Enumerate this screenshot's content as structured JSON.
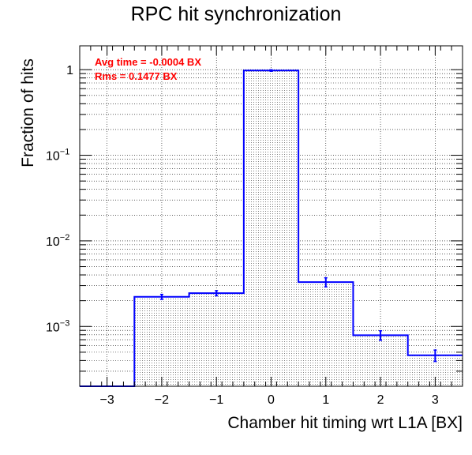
{
  "chart_data": {
    "type": "bar",
    "title": "RPC hit synchronization",
    "xlabel": "Chamber hit timing wrt L1A [BX]",
    "ylabel": "Fraction of hits",
    "log_y": true,
    "xlim": [
      -3.5,
      3.5
    ],
    "ylim": [
      0.0002,
      1.9
    ],
    "x_ticks": [
      -3,
      -2,
      -1,
      0,
      1,
      2,
      3
    ],
    "y_ticks": [
      {
        "value": 0.001,
        "base": "10",
        "exp": "−3"
      },
      {
        "value": 0.01,
        "base": "10",
        "exp": "−2"
      },
      {
        "value": 0.1,
        "base": "10",
        "exp": "−1"
      },
      {
        "value": 1,
        "base": "1",
        "exp": ""
      }
    ],
    "grid": true,
    "bins": [
      {
        "x": -3,
        "value": 0.0,
        "error": 0.0
      },
      {
        "x": -2,
        "value": 0.00222,
        "error": 0.00015
      },
      {
        "x": -1,
        "value": 0.00245,
        "error": 0.00017
      },
      {
        "x": 0,
        "value": 0.978,
        "error": 0.02
      },
      {
        "x": 1,
        "value": 0.0033,
        "error": 0.0004
      },
      {
        "x": 2,
        "value": 0.00079,
        "error": 0.0001
      },
      {
        "x": 3,
        "value": 0.00046,
        "error": 7e-05
      }
    ],
    "annotations": [
      "Avg time = -0.0004 BX",
      "Rms = 0.1477 BX"
    ],
    "colors": {
      "histogram": "#0000ff",
      "annotation": "#ff0000",
      "fill": "#808080"
    }
  }
}
